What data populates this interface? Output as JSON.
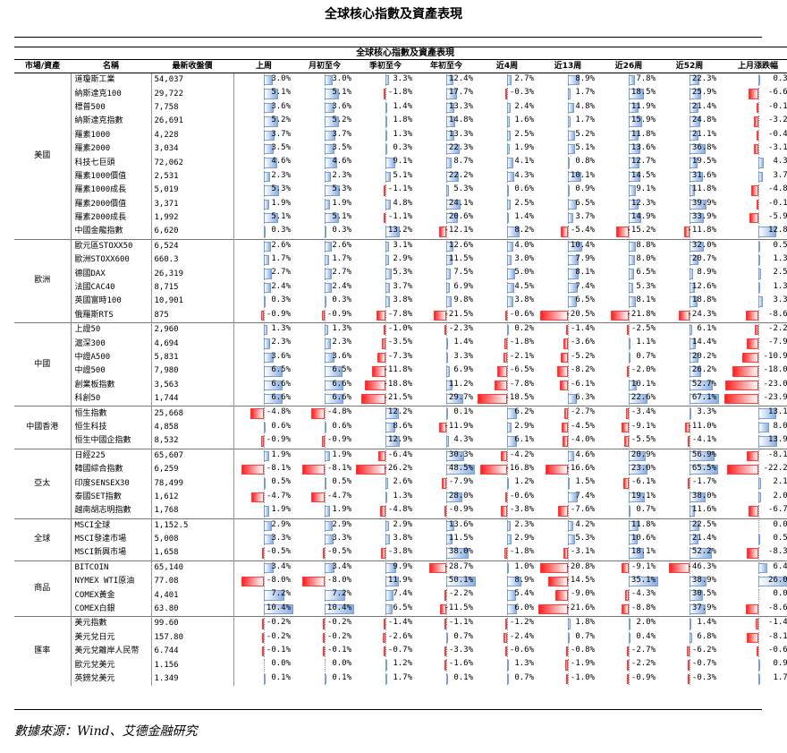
{
  "title": "全球核心指數及資產表現",
  "table_caption": "全球核心指數及資產表現",
  "source": "數據來源：Wind、艾德金融研究",
  "colors": {
    "positive_bar": "#8aaee0",
    "negative_bar": "#ff1f1f"
  },
  "columns": [
    "市場/資產",
    "名稱",
    "最新收盤價",
    "上周",
    "月初至今",
    "季初至今",
    "年初至今",
    "近4周",
    "近13周",
    "近26周",
    "近52周",
    "上月漲跌幅"
  ],
  "groups": [
    {
      "market": "美國",
      "rows": [
        [
          "道瓊斯工業",
          "54,037",
          "3.0%",
          "3.0%",
          "3.3%",
          "12.4%",
          "2.7%",
          "8.9%",
          "7.8%",
          "22.3%",
          "0.3%"
        ],
        [
          "納斯達克100",
          "29,722",
          "5.1%",
          "5.1%",
          "-1.8%",
          "17.7%",
          "-0.3%",
          "1.7%",
          "18.5%",
          "25.9%",
          "-6.6%"
        ],
        [
          "標普500",
          "7,758",
          "3.6%",
          "3.6%",
          "1.4%",
          "13.3%",
          "2.4%",
          "4.8%",
          "11.9%",
          "21.4%",
          "-0.1%"
        ],
        [
          "納斯達克指數",
          "26,691",
          "5.2%",
          "5.2%",
          "1.8%",
          "14.8%",
          "1.6%",
          "1.7%",
          "15.9%",
          "24.8%",
          "-3.2%"
        ],
        [
          "羅素1000",
          "4,228",
          "3.7%",
          "3.7%",
          "1.3%",
          "13.3%",
          "2.5%",
          "5.2%",
          "11.8%",
          "21.1%",
          "-0.4%"
        ],
        [
          "羅素2000",
          "3,034",
          "3.5%",
          "3.5%",
          "0.3%",
          "22.3%",
          "1.9%",
          "5.1%",
          "13.6%",
          "36.8%",
          "-3.1%"
        ],
        [
          "科技七巨頭",
          "72,062",
          "4.6%",
          "4.6%",
          "9.1%",
          "8.7%",
          "4.1%",
          "0.8%",
          "12.7%",
          "19.5%",
          "4.3%"
        ],
        [
          "羅素1000價值",
          "2,531",
          "2.3%",
          "2.3%",
          "5.1%",
          "22.2%",
          "4.3%",
          "10.1%",
          "14.5%",
          "31.6%",
          "3.7%"
        ],
        [
          "羅素1000成長",
          "5,019",
          "5.3%",
          "5.3%",
          "-1.1%",
          "5.3%",
          "0.6%",
          "0.9%",
          "9.1%",
          "11.8%",
          "-4.8%"
        ],
        [
          "羅素2000價值",
          "3,371",
          "1.9%",
          "1.9%",
          "4.8%",
          "24.1%",
          "2.5%",
          "6.5%",
          "12.3%",
          "39.9%",
          "-0.1%"
        ],
        [
          "羅素2000成長",
          "1,992",
          "5.1%",
          "5.1%",
          "-1.1%",
          "20.6%",
          "1.4%",
          "3.7%",
          "14.9%",
          "33.9%",
          "-5.9%"
        ],
        [
          "中國金龍指數",
          "6,620",
          "0.3%",
          "0.3%",
          "13.2%",
          "-12.1%",
          "8.2%",
          "-5.4%",
          "-15.2%",
          "-11.8%",
          "12.8%"
        ]
      ]
    },
    {
      "market": "歐洲",
      "rows": [
        [
          "歐元區STOXX50",
          "6,524",
          "2.6%",
          "2.6%",
          "3.1%",
          "12.6%",
          "4.0%",
          "10.4%",
          "8.8%",
          "32.0%",
          "0.5%"
        ],
        [
          "歐洲STOXX600",
          "660.3",
          "1.7%",
          "1.7%",
          "2.9%",
          "11.5%",
          "3.0%",
          "7.9%",
          "8.0%",
          "20.7%",
          "1.3%"
        ],
        [
          "德國DAX",
          "26,319",
          "2.7%",
          "2.7%",
          "5.3%",
          "7.5%",
          "5.0%",
          "8.1%",
          "6.5%",
          "8.9%",
          "2.5%"
        ],
        [
          "法國CAC40",
          "8,715",
          "2.4%",
          "2.4%",
          "3.7%",
          "6.9%",
          "4.5%",
          "7.4%",
          "5.3%",
          "12.6%",
          "1.3%"
        ],
        [
          "英國富時100",
          "10,901",
          "0.3%",
          "0.3%",
          "3.8%",
          "9.8%",
          "3.8%",
          "6.5%",
          "8.1%",
          "18.8%",
          "3.3%"
        ],
        [
          "俄羅斯RTS",
          "875",
          "-0.9%",
          "-0.9%",
          "-7.8%",
          "-21.5%",
          "-0.6%",
          "-20.5%",
          "-21.8%",
          "-24.3%",
          "-8.6%"
        ]
      ]
    },
    {
      "market": "中國",
      "rows": [
        [
          "上證50",
          "2,960",
          "1.3%",
          "1.3%",
          "-1.0%",
          "-2.3%",
          "0.2%",
          "-1.4%",
          "-2.5%",
          "6.1%",
          "-2.2%"
        ],
        [
          "滬深300",
          "4,694",
          "2.3%",
          "2.3%",
          "-3.5%",
          "1.4%",
          "-1.8%",
          "-3.6%",
          "1.1%",
          "14.4%",
          "-7.9%"
        ],
        [
          "中證A500",
          "5,831",
          "3.6%",
          "3.6%",
          "-7.3%",
          "3.3%",
          "-2.1%",
          "-5.2%",
          "0.7%",
          "20.2%",
          "-10.9%"
        ],
        [
          "中證500",
          "7,980",
          "6.5%",
          "6.5%",
          "-11.8%",
          "6.9%",
          "-6.5%",
          "-8.2%",
          "-2.0%",
          "26.2%",
          "-18.0%"
        ],
        [
          "創業板指數",
          "3,563",
          "6.6%",
          "6.6%",
          "-18.8%",
          "11.2%",
          "-7.8%",
          "-6.1%",
          "10.1%",
          "52.7%",
          "-23.0%"
        ],
        [
          "科創50",
          "1,744",
          "6.6%",
          "6.6%",
          "-21.5%",
          "29.7%",
          "-18.5%",
          "6.3%",
          "22.6%",
          "67.1%",
          "-23.9%"
        ]
      ]
    },
    {
      "market": "中國香港",
      "rows": [
        [
          "恒生指數",
          "25,668",
          "-4.8%",
          "-4.8%",
          "12.2%",
          "0.1%",
          "6.2%",
          "-2.7%",
          "-3.4%",
          "3.3%",
          "13.1%"
        ],
        [
          "恒生科技",
          "4,858",
          "0.6%",
          "0.6%",
          "8.6%",
          "-11.9%",
          "2.9%",
          "-4.5%",
          "-9.1%",
          "-11.0%",
          "8.0%"
        ],
        [
          "恒生中國企指數",
          "8,532",
          "-0.9%",
          "-0.9%",
          "12.9%",
          "4.3%",
          "6.1%",
          "-4.0%",
          "-5.5%",
          "-4.1%",
          "13.9%"
        ]
      ]
    },
    {
      "market": "亞太",
      "rows": [
        [
          "日經225",
          "65,607",
          "1.9%",
          "1.9%",
          "-6.4%",
          "30.3%",
          "-4.2%",
          "4.6%",
          "20.9%",
          "56.9%",
          "-8.1%"
        ],
        [
          "韓國綜合指數",
          "6,259",
          "-8.1%",
          "-8.1%",
          "-26.2%",
          "48.5%",
          "-16.8%",
          "-16.6%",
          "23.0%",
          "65.5%",
          "-22.2%"
        ],
        [
          "印度SENSEX30",
          "78,499",
          "0.5%",
          "0.5%",
          "2.6%",
          "-7.9%",
          "1.2%",
          "1.5%",
          "-6.1%",
          "-1.7%",
          "2.1%"
        ],
        [
          "泰國SET指數",
          "1,612",
          "-4.7%",
          "-4.7%",
          "1.3%",
          "28.0%",
          "-0.6%",
          "7.4%",
          "19.1%",
          "38.0%",
          "2.0%"
        ],
        [
          "越南胡志明指數",
          "1,768",
          "1.9%",
          "1.9%",
          "-4.8%",
          "-0.9%",
          "-3.8%",
          "-7.6%",
          "0.7%",
          "11.6%",
          "-6.7%"
        ]
      ]
    },
    {
      "market": "全球",
      "rows": [
        [
          "MSCI全球",
          "1,152.5",
          "2.9%",
          "2.9%",
          "2.9%",
          "13.6%",
          "2.3%",
          "4.2%",
          "11.8%",
          "22.5%",
          "0.0%"
        ],
        [
          "MSCI發達市場",
          "5,008",
          "3.3%",
          "3.3%",
          "3.8%",
          "11.5%",
          "2.9%",
          "5.3%",
          "10.6%",
          "21.4%",
          "0.5%"
        ],
        [
          "MSCI新興市場",
          "1,658",
          "-0.5%",
          "-0.5%",
          "-3.8%",
          "38.0%",
          "-1.8%",
          "-3.1%",
          "18.1%",
          "52.2%",
          "-8.3%"
        ]
      ]
    },
    {
      "market": "商品",
      "rows": [
        [
          "BITCOIN",
          "65,140",
          "3.4%",
          "3.4%",
          "9.9%",
          "-28.7%",
          "1.0%",
          "-20.8%",
          "-9.1%",
          "-46.3%",
          "6.4%"
        ],
        [
          "NYMEX WTI原油",
          "77.08",
          "-8.0%",
          "-8.0%",
          "11.9%",
          "50.1%",
          "8.9%",
          "-14.5%",
          "35.1%",
          "38.9%",
          "26.0%"
        ],
        [
          "COMEX黃金",
          "4,401",
          "7.2%",
          "7.2%",
          "7.4%",
          "-2.2%",
          "5.4%",
          "-9.0%",
          "-4.3%",
          "30.5%",
          "0.0%"
        ],
        [
          "COMEX白銀",
          "63.80",
          "10.4%",
          "10.4%",
          "6.5%",
          "-11.5%",
          "6.0%",
          "-21.6%",
          "-8.8%",
          "37.9%",
          "-8.6%"
        ]
      ]
    },
    {
      "market": "匯率",
      "rows": [
        [
          "美元指數",
          "99.60",
          "-0.2%",
          "-0.2%",
          "-1.4%",
          "-1.1%",
          "-1.2%",
          "1.8%",
          "2.0%",
          "1.4%",
          "-1.4%"
        ],
        [
          "美元兌日元",
          "157.80",
          "-0.2%",
          "-0.2%",
          "-2.6%",
          "0.7%",
          "-2.4%",
          "0.7%",
          "0.4%",
          "6.8%",
          "-8.1%"
        ],
        [
          "美元兌離岸人民幣",
          "6.744",
          "-0.1%",
          "-0.1%",
          "-0.7%",
          "-3.3%",
          "-0.6%",
          "-0.8%",
          "-2.7%",
          "-6.2%",
          "-0.6%"
        ],
        [
          "歐元兌美元",
          "1.156",
          "0.0%",
          "0.0%",
          "1.2%",
          "-1.6%",
          "1.3%",
          "-1.9%",
          "-2.2%",
          "-0.7%",
          "0.9%"
        ],
        [
          "英鎊兌美元",
          "1.349",
          "0.1%",
          "0.1%",
          "1.7%",
          "0.1%",
          "0.7%",
          "-1.0%",
          "-0.9%",
          "-0.3%",
          "1.7%"
        ]
      ]
    }
  ]
}
